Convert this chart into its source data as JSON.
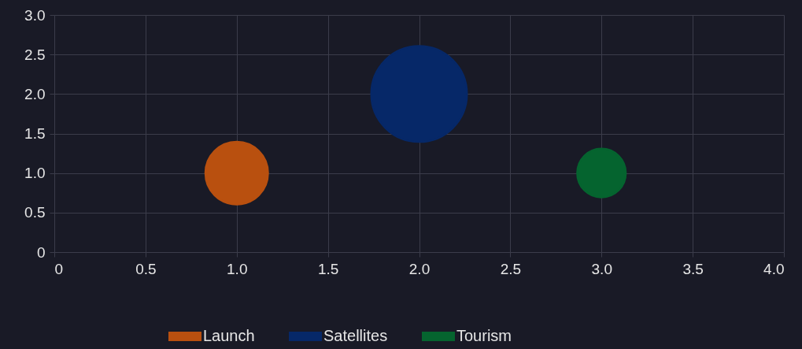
{
  "chart_data": {
    "type": "bubble",
    "series": [
      {
        "name": "Launch",
        "color": "#b9500f",
        "x": [
          1.0
        ],
        "values": [
          1.0
        ],
        "sizes": [
          0.43
        ]
      },
      {
        "name": "Satellites",
        "color": "#062868",
        "x": [
          2.0
        ],
        "values": [
          2.0
        ],
        "sizes": [
          1
        ]
      },
      {
        "name": "Tourism",
        "color": "#05642f",
        "x": [
          3.0
        ],
        "values": [
          1.0
        ],
        "sizes": [
          0.26
        ]
      }
    ],
    "xlim": [
      0,
      4
    ],
    "ylim": [
      0,
      3
    ],
    "xticks": [
      0,
      0.5,
      {
        "value": 1,
        "label": "1.0"
      },
      1.5,
      {
        "value": 2,
        "label": "2.0"
      },
      2.5,
      {
        "value": 3,
        "label": "3.0"
      },
      3.5,
      {
        "value": 4,
        "label": "4.0"
      }
    ],
    "yticks": [
      0,
      0.5,
      {
        "value": 1,
        "label": "1.0"
      },
      1.5,
      {
        "value": 2,
        "label": "2.0"
      },
      2.5,
      {
        "value": 3,
        "label": "3.0"
      }
    ],
    "grid": true,
    "legend": "bottom"
  }
}
